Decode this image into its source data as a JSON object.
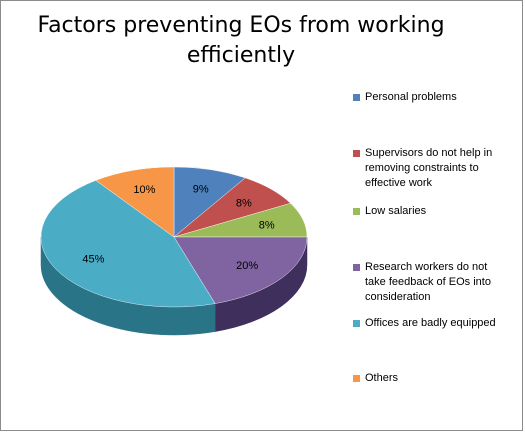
{
  "chart_data": {
    "type": "pie",
    "title": "Factors preventing EOs from working\nefficiently",
    "slices": [
      {
        "label": "Personal problems",
        "value": 9,
        "data_label": "9%",
        "color": "#4f81bd",
        "side": "#2d5a8a"
      },
      {
        "label": "Supervisors do not help in\nremoving constraints to\neffective work",
        "value": 8,
        "data_label": "8%",
        "color": "#c0504d",
        "side": "#8a2d2b"
      },
      {
        "label": "Low salaries",
        "value": 8,
        "data_label": "8%",
        "color": "#9bbb59",
        "side": "#6b8a32"
      },
      {
        "label": "Research workers do not\ntake feedback of EOs into\nconsideration",
        "value": 20,
        "data_label": "20%",
        "color": "#8064a2",
        "side": "#3f2f5c"
      },
      {
        "label": "Offices are badly equipped",
        "value": 45,
        "data_label": "45%",
        "color": "#4bacc6",
        "side": "#2a7488"
      },
      {
        "label": "Others",
        "value": 10,
        "data_label": "10%",
        "color": "#f79646",
        "side": "#b8641f"
      }
    ],
    "legend_position": "right"
  }
}
